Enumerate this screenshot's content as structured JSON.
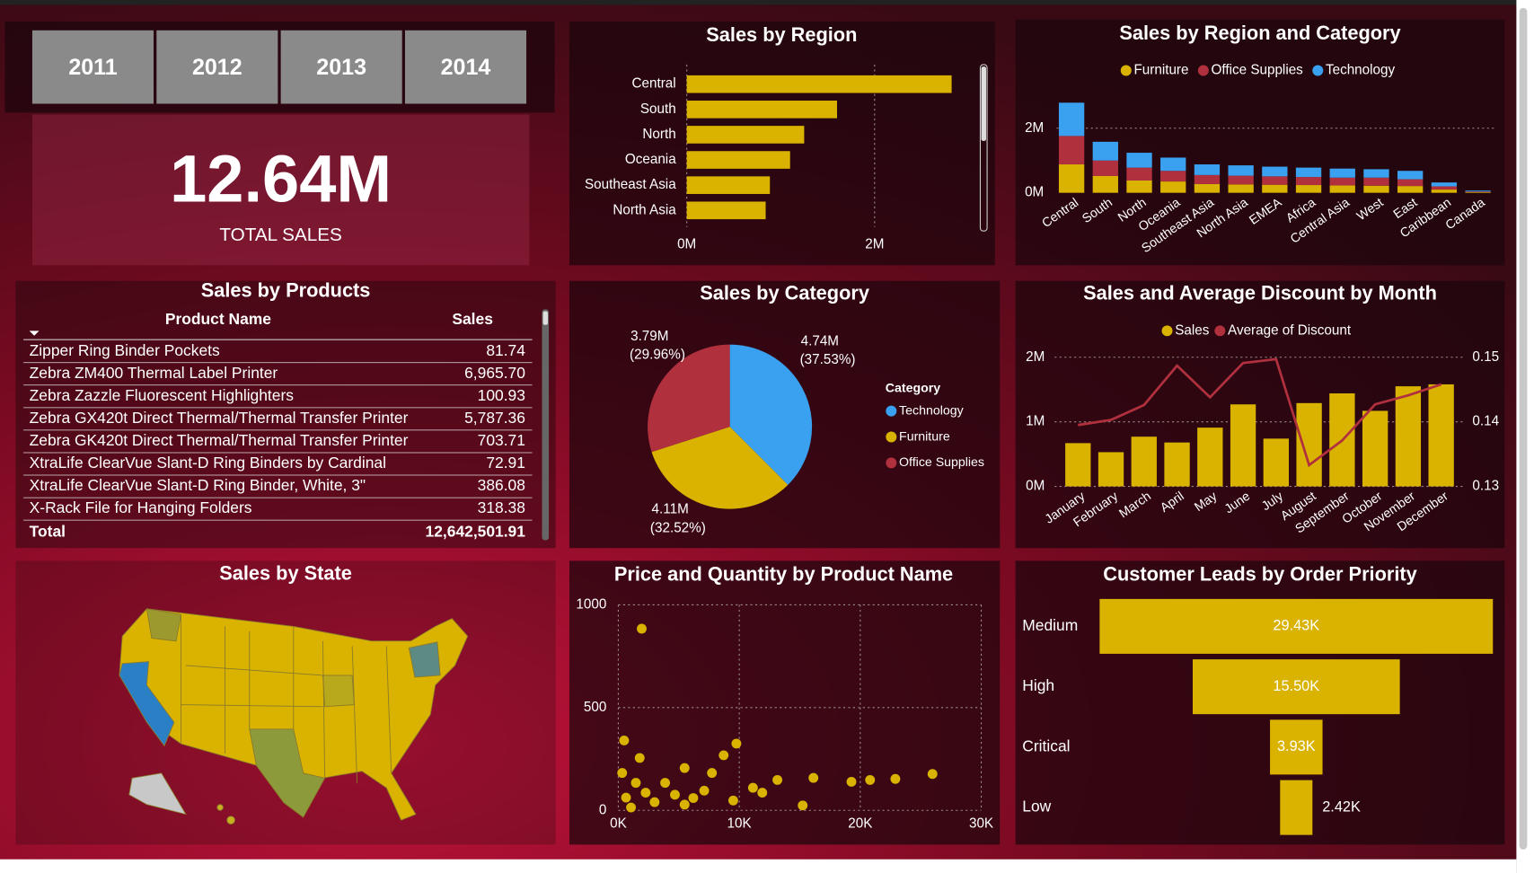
{
  "slicer": {
    "years": [
      "2011",
      "2012",
      "2013",
      "2014"
    ]
  },
  "kpi": {
    "value": "12.64M",
    "label": "TOTAL SALES"
  },
  "products_table": {
    "title": "Sales by Products",
    "columns": [
      "Product Name",
      "Sales"
    ],
    "rows": [
      [
        "Zipper Ring Binder Pockets",
        "81.74"
      ],
      [
        "Zebra ZM400 Thermal Label Printer",
        "6,965.70"
      ],
      [
        "Zebra Zazzle Fluorescent Highlighters",
        "100.93"
      ],
      [
        "Zebra GX420t Direct Thermal/Thermal Transfer Printer",
        "5,787.36"
      ],
      [
        "Zebra GK420t Direct Thermal/Thermal Transfer Printer",
        "703.71"
      ],
      [
        "XtraLife ClearVue Slant-D Ring Binders by Cardinal",
        "72.91"
      ],
      [
        "XtraLife ClearVue Slant-D Ring Binder, White, 3\"",
        "386.08"
      ],
      [
        "X-Rack File for Hanging Folders",
        "318.38"
      ]
    ],
    "total": [
      "Total",
      "12,642,501.91"
    ]
  },
  "map": {
    "title": "Sales by State"
  },
  "chart_data": [
    {
      "type": "hbar",
      "title": "Sales by Region",
      "categories": [
        "Central",
        "South",
        "North",
        "Oceania",
        "Southeast Asia",
        "North Asia"
      ],
      "values": [
        2820000,
        1600000,
        1250000,
        1100000,
        885000,
        840000
      ],
      "color": "#d9b300",
      "xlim": [
        0,
        3000000
      ],
      "xticks": [
        {
          "value": 0,
          "label": "0M"
        },
        {
          "value": 2000000,
          "label": "2M"
        }
      ],
      "grid": true
    },
    {
      "type": "stacked_bar",
      "title": "Sales by Region and Category",
      "categories": [
        "Central",
        "South",
        "North",
        "Oceania",
        "Southeast Asia",
        "North Asia",
        "EMEA",
        "Africa",
        "Central Asia",
        "West",
        "East",
        "Caribbean",
        "Canada"
      ],
      "series": [
        {
          "name": "Furniture",
          "color": "#d9b300",
          "values": [
            880000,
            520000,
            380000,
            350000,
            270000,
            260000,
            250000,
            240000,
            230000,
            220000,
            210000,
            100000,
            20000
          ]
        },
        {
          "name": "Office Supplies",
          "color": "#b0303e",
          "values": [
            880000,
            480000,
            400000,
            330000,
            280000,
            270000,
            260000,
            250000,
            240000,
            250000,
            210000,
            100000,
            20000
          ]
        },
        {
          "name": "Technology",
          "color": "#3aa0f0",
          "values": [
            1030000,
            580000,
            460000,
            410000,
            330000,
            320000,
            300000,
            290000,
            280000,
            260000,
            260000,
            120000,
            30000
          ]
        }
      ],
      "ylim": [
        0,
        3000000
      ],
      "yticks": [
        {
          "value": 0,
          "label": "0M"
        },
        {
          "value": 2000000,
          "label": "2M"
        }
      ],
      "grid": true
    },
    {
      "type": "pie",
      "title": "Sales by Category",
      "legend_title": "Category",
      "categories": [
        "Technology",
        "Furniture",
        "Office Supplies"
      ],
      "values": [
        4.74,
        4.11,
        3.79
      ],
      "value_labels": [
        "4.74M",
        "4.11M",
        "3.79M"
      ],
      "percent_labels": [
        "(37.53%)",
        "(32.52%)",
        "(29.96%)"
      ],
      "colors": [
        "#3aa0f0",
        "#d9b300",
        "#b0303e"
      ]
    },
    {
      "type": "combo",
      "title": "Sales and Average Discount by Month",
      "categories": [
        "January",
        "February",
        "March",
        "April",
        "May",
        "June",
        "July",
        "August",
        "September",
        "October",
        "November",
        "December"
      ],
      "series": [
        {
          "name": "Sales",
          "color": "#d9b300",
          "values": [
            670000,
            530000,
            770000,
            680000,
            910000,
            1270000,
            740000,
            1290000,
            1440000,
            1170000,
            1550000,
            1580000
          ]
        },
        {
          "name": "Average of Discount",
          "color": "#b0303e",
          "axis": "y2",
          "values": [
            0.1395,
            0.1403,
            0.1426,
            0.1487,
            0.1438,
            0.1491,
            0.1497,
            0.1333,
            0.1371,
            0.1427,
            0.1441,
            0.1458
          ]
        }
      ],
      "ylim": [
        0,
        2000000
      ],
      "yticks": [
        {
          "value": 0,
          "label": "0M"
        },
        {
          "value": 1000000,
          "label": "1M"
        },
        {
          "value": 2000000,
          "label": "2M"
        }
      ],
      "y2lim": [
        0.13,
        0.15
      ],
      "y2ticks": [
        0.13,
        0.14,
        0.15
      ],
      "grid": true
    },
    {
      "type": "scatter",
      "title": "Price and Quantity by Product Name",
      "color": "#d9b300",
      "x": [
        1935,
        480,
        1770,
        8710,
        9760,
        13150,
        16130,
        19270,
        20810,
        22900,
        25970,
        15240,
        11130,
        7740,
        5480,
        3870,
        640,
        2260,
        4680,
        7100,
        1050,
        5480,
        9500,
        11900,
        320,
        1450,
        3000,
        6200
      ],
      "values": [
        884,
        340,
        255,
        268,
        325,
        148,
        158,
        139,
        148,
        153,
        177,
        24,
        110,
        182,
        206,
        134,
        62,
        86,
        76,
        96,
        14,
        28,
        48,
        86,
        182,
        134,
        40,
        60
      ],
      "xlim": [
        0,
        30000
      ],
      "xticks": [
        {
          "value": 0,
          "label": "0K"
        },
        {
          "value": 10000,
          "label": "10K"
        },
        {
          "value": 20000,
          "label": "20K"
        },
        {
          "value": 30000,
          "label": "30K"
        }
      ],
      "ylim": [
        0,
        1000
      ],
      "yticks": [
        0,
        500,
        1000
      ],
      "grid": true
    },
    {
      "type": "funnel",
      "title": "Customer Leads by Order Priority",
      "color": "#d9b300",
      "categories": [
        "Medium",
        "High",
        "Critical",
        "Low"
      ],
      "values": [
        29430,
        15500,
        3930,
        2420
      ],
      "value_labels": [
        "29.43K",
        "15.50K",
        "3.93K",
        "2.42K"
      ]
    }
  ]
}
